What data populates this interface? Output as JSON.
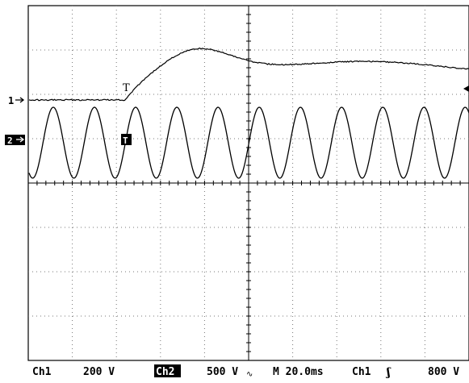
{
  "channels": {
    "ch1_marker": "1",
    "ch2_marker": "2",
    "trigger_glyph": "T",
    "ch1_trace": {
      "baseline_level": 0,
      "step_time_div": 2.2,
      "peak_level": 1.25,
      "settle_level": 0.75
    },
    "ch2_trace": {
      "cycles_on_screen": 10.7,
      "amplitude_div": 0.8
    }
  },
  "status_bar": {
    "ch1_label": "Ch1",
    "ch1_scale": "200 V",
    "ch2_label": "Ch2",
    "ch2_scale": "500 V",
    "ch2_coupling_glyph": "∿",
    "timebase": "M 20.0ms",
    "trigger_source": "Ch1",
    "trigger_slope": "ʃ",
    "trigger_level": "800 V"
  }
}
